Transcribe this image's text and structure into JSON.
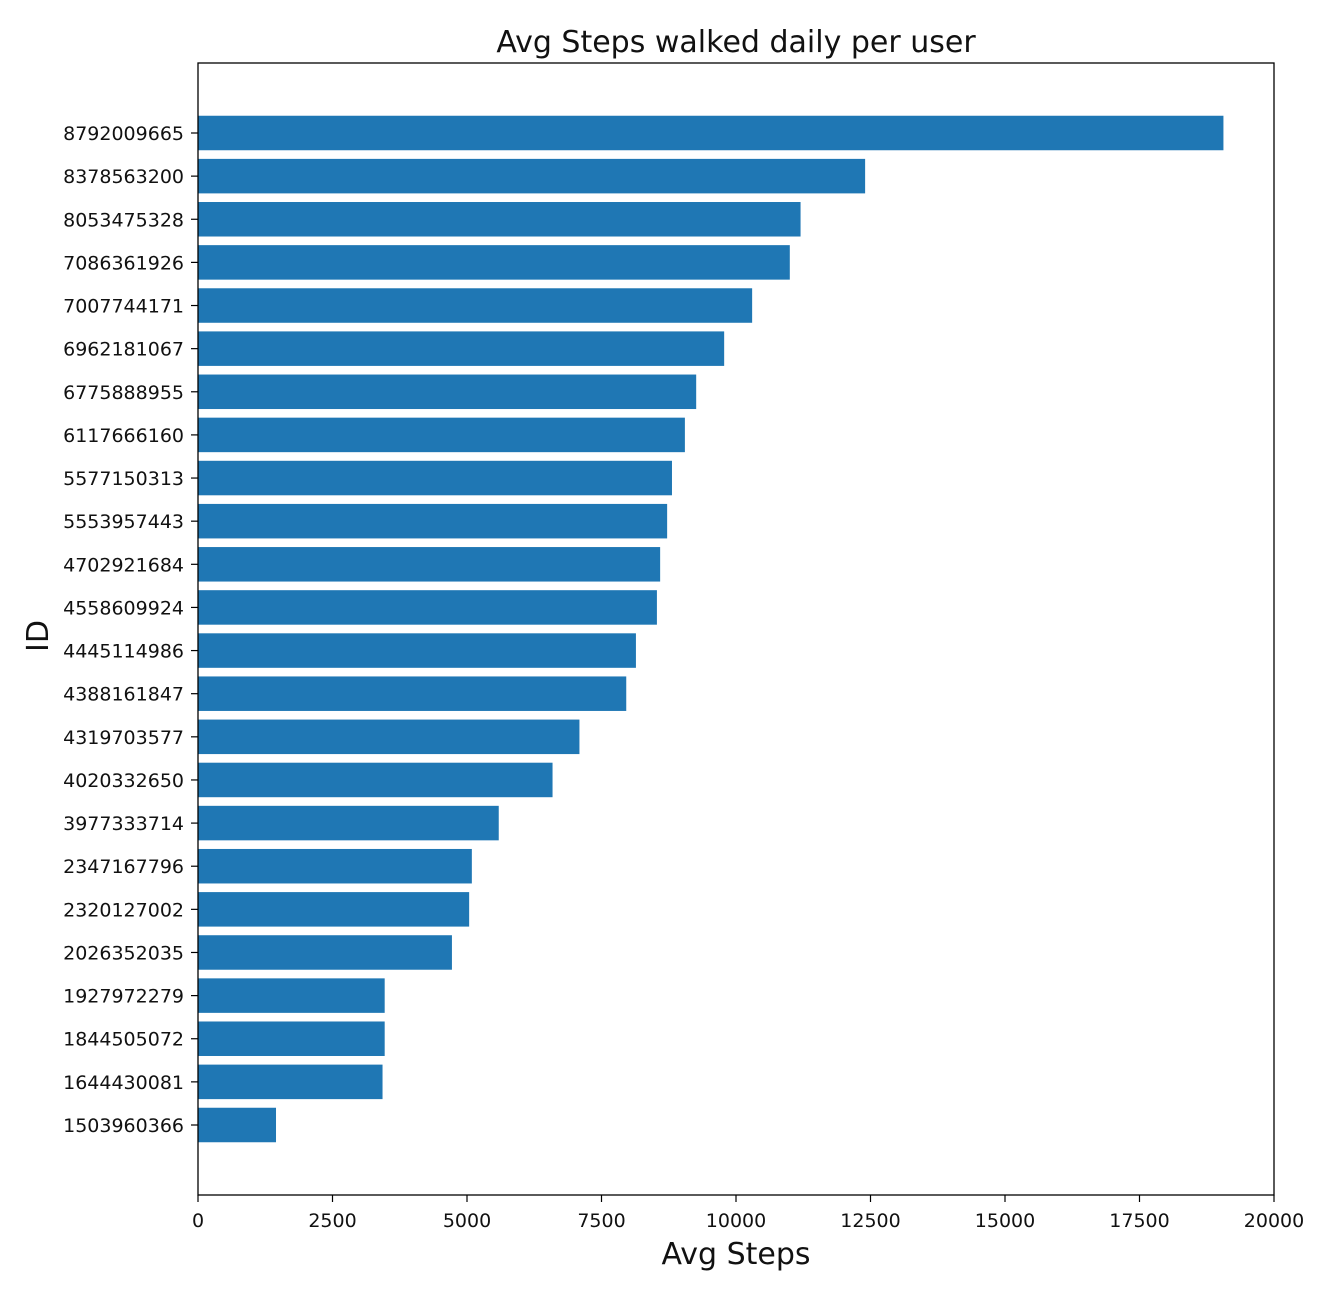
{
  "chart_data": {
    "type": "bar",
    "orientation": "horizontal",
    "title": "Avg Steps walked daily per user",
    "xlabel": "Avg Steps",
    "ylabel": "ID",
    "xlim": [
      0,
      20000
    ],
    "xticks": [
      0,
      2500,
      5000,
      7500,
      10000,
      12500,
      15000,
      17500,
      20000
    ],
    "grid": false,
    "bar_color": "#1f77b4",
    "categories": [
      "8792009665",
      "8378563200",
      "8053475328",
      "7086361926",
      "7007744171",
      "6962181067",
      "6775888955",
      "6117666160",
      "5577150313",
      "5553957443",
      "4702921684",
      "4558609924",
      "4445114986",
      "4388161847",
      "4319703577",
      "4020332650",
      "3977333714",
      "2347167796",
      "2320127002",
      "2026352035",
      "1927972279",
      "1844505072",
      "1644430081",
      "1503960366"
    ],
    "values": [
      19060,
      12400,
      11200,
      11000,
      10300,
      9780,
      9260,
      9050,
      8810,
      8720,
      8590,
      8530,
      8140,
      7960,
      7090,
      6590,
      5590,
      5090,
      5040,
      4720,
      3470,
      3470,
      3430,
      1450
    ]
  }
}
